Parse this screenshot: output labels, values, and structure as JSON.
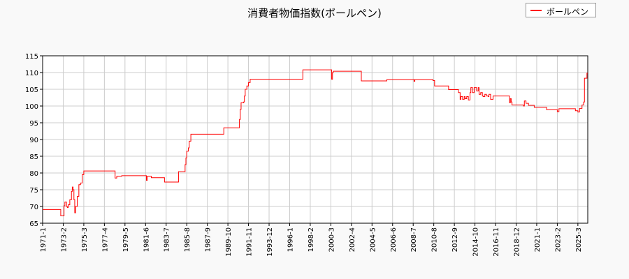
{
  "chart_data": {
    "type": "line",
    "title": "消費者物価指数(ボールペン)",
    "xlabel": "",
    "ylabel": "",
    "ylim": [
      65,
      115
    ],
    "xlim": [
      "1971-01",
      "2026-03"
    ],
    "yticks": [
      65,
      70,
      75,
      80,
      85,
      90,
      95,
      100,
      105,
      110,
      115
    ],
    "xticks": [
      "1971-1",
      "1973-2",
      "1975-3",
      "1977-4",
      "1979-5",
      "1981-6",
      "1983-7",
      "1985-8",
      "1987-9",
      "1989-10",
      "1991-11",
      "1993-12",
      "1996-1",
      "1998-2",
      "2000-3",
      "2002-4",
      "2004-5",
      "2006-6",
      "2008-7",
      "2010-8",
      "2012-9",
      "2014-10",
      "2016-11",
      "2018-12",
      "2021-1",
      "2023-2",
      "2025-3"
    ],
    "grid": true,
    "legend_position": "top-right",
    "series": [
      {
        "name": "ボールペン",
        "color": "#ff0000",
        "points": [
          [
            "1971-01",
            69.1
          ],
          [
            "1972-11",
            67.2
          ],
          [
            "1973-03",
            70.2
          ],
          [
            "1973-04",
            71.3
          ],
          [
            "1973-06",
            70.0
          ],
          [
            "1973-07",
            69.7
          ],
          [
            "1973-08",
            70.5
          ],
          [
            "1973-10",
            72.0
          ],
          [
            "1973-12",
            74.5
          ],
          [
            "1974-01",
            75.8
          ],
          [
            "1974-02",
            75.0
          ],
          [
            "1974-03",
            72.0
          ],
          [
            "1974-04",
            68.1
          ],
          [
            "1974-05",
            70.0
          ],
          [
            "1974-07",
            73.0
          ],
          [
            "1974-09",
            76.5
          ],
          [
            "1974-11",
            77.0
          ],
          [
            "1975-01",
            79.5
          ],
          [
            "1975-03",
            80.6
          ],
          [
            "1978-05",
            78.5
          ],
          [
            "1978-07",
            79.0
          ],
          [
            "1979-01",
            79.2
          ],
          [
            "1981-07",
            77.8
          ],
          [
            "1981-08",
            79.0
          ],
          [
            "1982-01",
            78.6
          ],
          [
            "1983-05",
            77.3
          ],
          [
            "1984-10",
            80.4
          ],
          [
            "1985-06",
            82.5
          ],
          [
            "1985-07",
            84.5
          ],
          [
            "1985-08",
            86.5
          ],
          [
            "1985-10",
            87.5
          ],
          [
            "1985-11",
            89.5
          ],
          [
            "1986-01",
            91.6
          ],
          [
            "1989-05",
            93.5
          ],
          [
            "1990-12",
            96.0
          ],
          [
            "1991-01",
            99.0
          ],
          [
            "1991-02",
            101.0
          ],
          [
            "1991-05",
            101.2
          ],
          [
            "1991-06",
            103.0
          ],
          [
            "1991-07",
            105.0
          ],
          [
            "1991-09",
            106.0
          ],
          [
            "1991-11",
            107.0
          ],
          [
            "1992-01",
            108.0
          ],
          [
            "1997-05",
            110.8
          ],
          [
            "2000-04",
            108.0
          ],
          [
            "2000-05",
            110.0
          ],
          [
            "2000-06",
            110.4
          ],
          [
            "2003-04",
            107.5
          ],
          [
            "2005-11",
            107.9
          ],
          [
            "2008-08",
            107.4
          ],
          [
            "2008-09",
            107.9
          ],
          [
            "2010-07",
            107.6
          ],
          [
            "2010-09",
            106.0
          ],
          [
            "2012-02",
            104.9
          ],
          [
            "2013-02",
            104.0
          ],
          [
            "2013-04",
            102.0
          ],
          [
            "2013-05",
            102.8
          ],
          [
            "2013-07",
            102.0
          ],
          [
            "2013-09",
            102.8
          ],
          [
            "2013-10",
            102.2
          ],
          [
            "2013-12",
            102.8
          ],
          [
            "2014-02",
            101.8
          ],
          [
            "2014-04",
            104.0
          ],
          [
            "2014-05",
            105.5
          ],
          [
            "2014-07",
            104.0
          ],
          [
            "2014-09",
            105.5
          ],
          [
            "2014-12",
            104.5
          ],
          [
            "2015-02",
            105.5
          ],
          [
            "2015-03",
            103.5
          ],
          [
            "2015-05",
            104.0
          ],
          [
            "2015-07",
            103.0
          ],
          [
            "2015-08",
            102.8
          ],
          [
            "2015-10",
            103.5
          ],
          [
            "2015-12",
            103.0
          ],
          [
            "2016-02",
            102.8
          ],
          [
            "2016-03",
            103.5
          ],
          [
            "2016-05",
            102.0
          ],
          [
            "2016-08",
            103.0
          ],
          [
            "2018-04",
            101.0
          ],
          [
            "2018-05",
            102.2
          ],
          [
            "2018-06",
            101.2
          ],
          [
            "2018-07",
            100.3
          ],
          [
            "2019-09",
            100.0
          ],
          [
            "2019-10",
            101.5
          ],
          [
            "2019-12",
            100.8
          ],
          [
            "2020-03",
            100.2
          ],
          [
            "2020-10",
            99.6
          ],
          [
            "2022-01",
            98.9
          ],
          [
            "2023-02",
            98.3
          ],
          [
            "2023-04",
            99.2
          ],
          [
            "2024-12",
            98.6
          ],
          [
            "2025-03",
            98.2
          ],
          [
            "2025-05",
            99.3
          ],
          [
            "2025-08",
            100.3
          ],
          [
            "2025-10",
            101.2
          ],
          [
            "2025-11",
            108.3
          ],
          [
            "2026-02",
            109.8
          ]
        ]
      }
    ]
  }
}
